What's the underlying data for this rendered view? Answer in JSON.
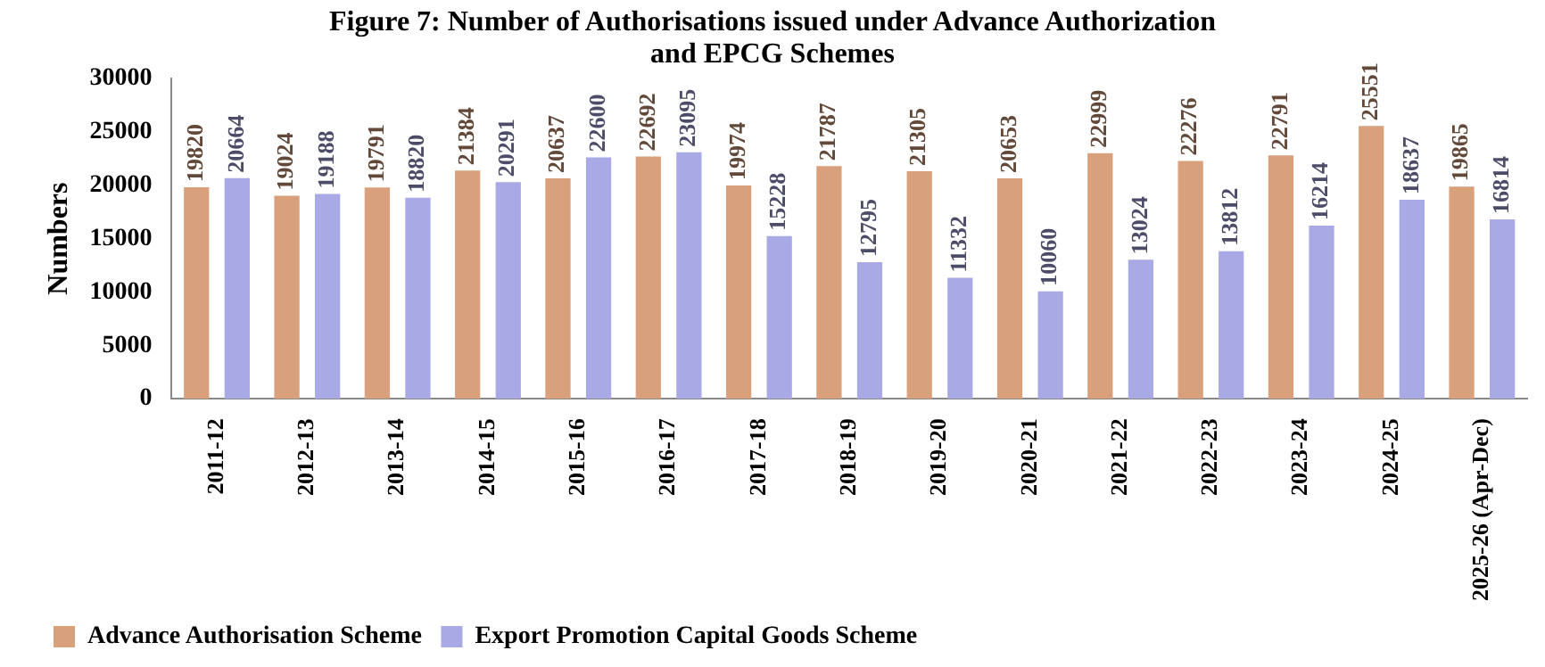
{
  "chart_data": {
    "type": "bar",
    "title": "Figure 7: Number of Authorisations issued under Advance Authorization and EPCG Schemes",
    "ylabel": "Numbers",
    "categories": [
      "2011-12",
      "2012-13",
      "2013-14",
      "2014-15",
      "2015-16",
      "2016-17",
      "2017-18",
      "2018-19",
      "2019-20",
      "2020-21",
      "2021-22",
      "2022-23",
      "2023-24",
      "2024-25",
      "2025-26 (Apr-Dec)"
    ],
    "series": [
      {
        "name": "Advance Authorisation Scheme",
        "color": "#d9a07c",
        "values": [
          19820,
          19024,
          19791,
          21384,
          20637,
          22692,
          19974,
          21787,
          21305,
          20653,
          22999,
          22276,
          22791,
          25551,
          19865
        ]
      },
      {
        "name": "Export Promotion Capital Goods Scheme",
        "color": "#a9a9e6",
        "values": [
          20664,
          19188,
          18820,
          20291,
          22600,
          23095,
          15228,
          12795,
          11332,
          10060,
          13024,
          13812,
          16214,
          18637,
          16814
        ]
      }
    ],
    "ylim": [
      0,
      30000
    ],
    "yticks": [
      0,
      5000,
      10000,
      15000,
      20000,
      25000,
      30000
    ],
    "grid": false,
    "legend": "bottom left",
    "data_labels": true
  }
}
